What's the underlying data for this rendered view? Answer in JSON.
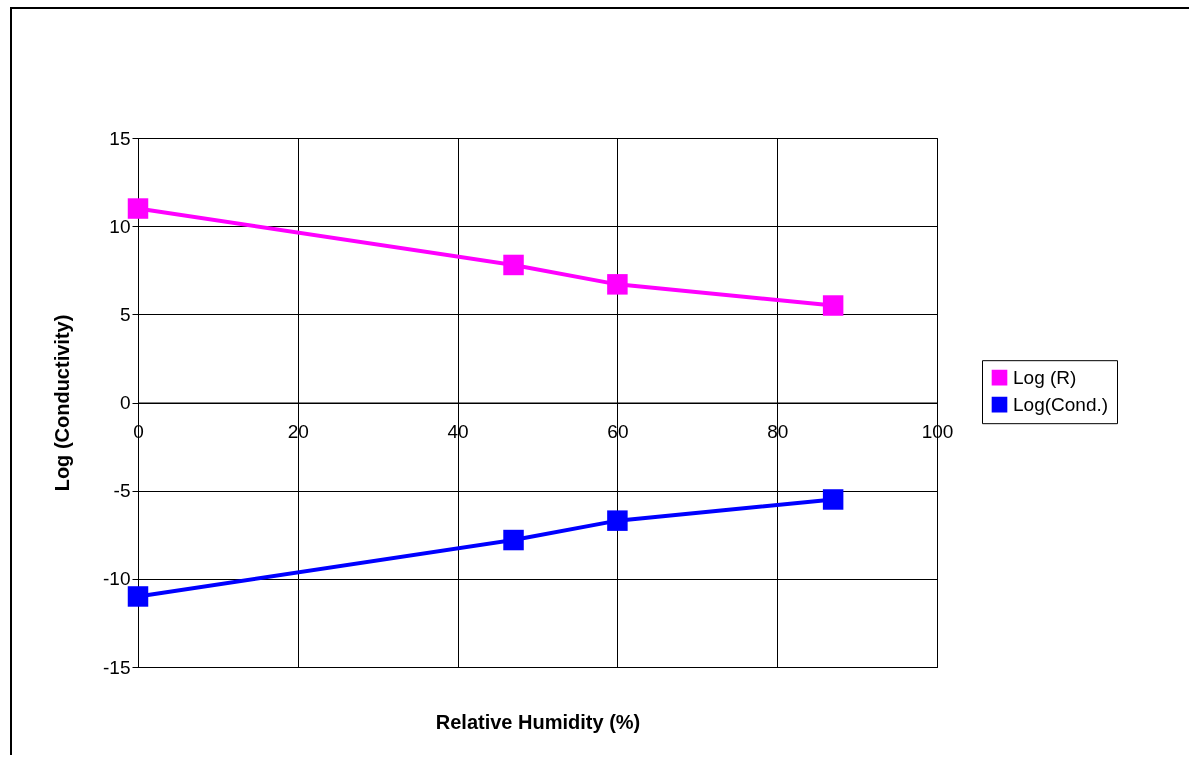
{
  "chart_data": {
    "type": "line",
    "xlabel": "Relative Humidity (%)",
    "ylabel": "Log (Conductivity)",
    "x": [
      0,
      47,
      60,
      87
    ],
    "series": [
      {
        "name": "Log (R)",
        "color": "#ff00ff",
        "values": [
          11,
          7.8,
          6.7,
          5.5
        ]
      },
      {
        "name": "Log(Cond.)",
        "color": "#0000ff",
        "values": [
          -11,
          -7.8,
          -6.7,
          -5.5
        ]
      }
    ],
    "xlim": [
      0,
      100
    ],
    "xticks": [
      0,
      20,
      40,
      60,
      80,
      100
    ],
    "ylim": [
      -15,
      15
    ],
    "yticks": [
      -15,
      -10,
      -5,
      0,
      5,
      10,
      15
    ],
    "grid": true,
    "legend": "right",
    "marker": "square"
  }
}
